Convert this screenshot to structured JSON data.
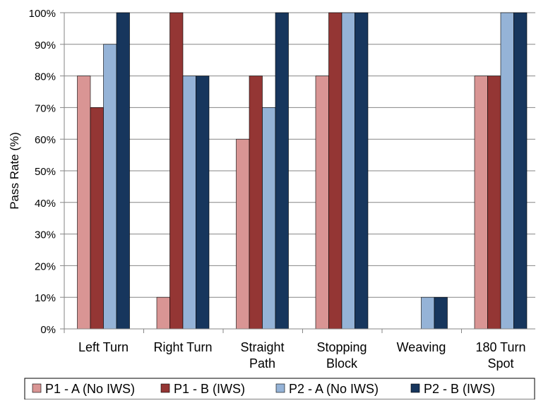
{
  "chart_data": {
    "type": "bar",
    "title": "",
    "xlabel": "",
    "ylabel": "Pass Rate (%)",
    "ylim": [
      0,
      100
    ],
    "yticks": [
      0,
      10,
      20,
      30,
      40,
      50,
      60,
      70,
      80,
      90,
      100
    ],
    "ytick_labels": [
      "0%",
      "10%",
      "20%",
      "30%",
      "40%",
      "50%",
      "60%",
      "70%",
      "80%",
      "90%",
      "100%"
    ],
    "grid": true,
    "legend_position": "bottom",
    "categories": [
      [
        "Left Turn"
      ],
      [
        "Right Turn"
      ],
      [
        "Straight",
        "Path"
      ],
      [
        "Stopping",
        "Block"
      ],
      [
        "Weaving"
      ],
      [
        "180 Turn",
        "Spot"
      ]
    ],
    "series": [
      {
        "name": "P1 - A (No IWS)",
        "color": "#d99594",
        "values": [
          80,
          10,
          60,
          80,
          0,
          80
        ]
      },
      {
        "name": "P1 - B (IWS)",
        "color": "#943634",
        "values": [
          70,
          100,
          80,
          100,
          0,
          80
        ]
      },
      {
        "name": "P2 - A (No IWS)",
        "color": "#95b3d7",
        "values": [
          90,
          80,
          70,
          100,
          10,
          100
        ]
      },
      {
        "name": "P2 - B (IWS)",
        "color": "#17365d",
        "values": [
          100,
          80,
          100,
          100,
          10,
          100
        ]
      }
    ]
  }
}
